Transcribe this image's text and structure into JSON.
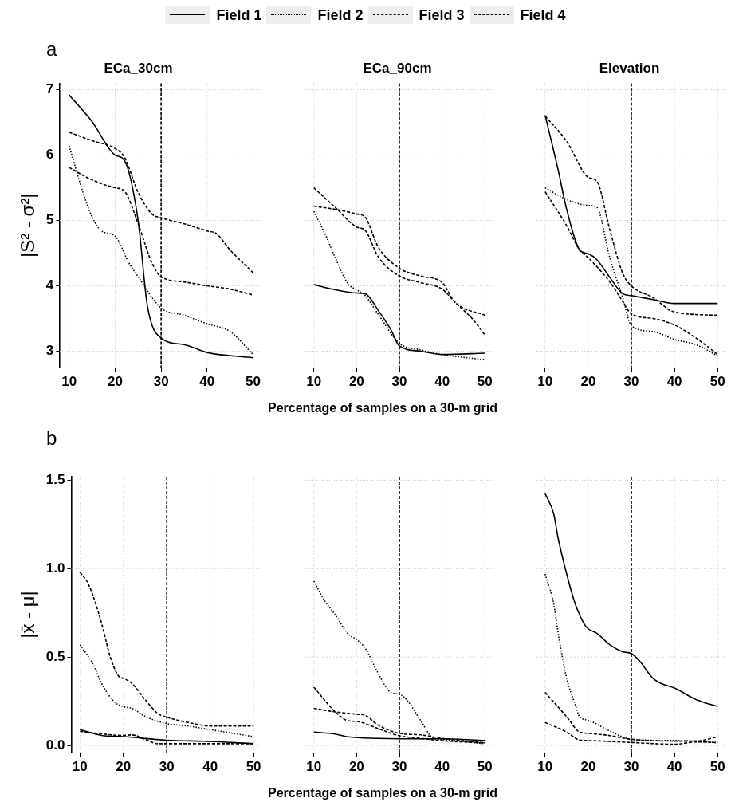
{
  "chart_data": [
    {
      "type": "line",
      "title": "ECa_30cm",
      "ylabel": "|S² - σ²|",
      "annotations": [
        "a"
      ],
      "legend": "top",
      "grid": true,
      "xlim": [
        8,
        52
      ],
      "xticks": [
        10,
        20,
        30,
        40,
        50
      ],
      "ylim": [
        2.75,
        7.1
      ],
      "yticks": [
        3,
        4,
        5,
        6,
        7
      ],
      "ref_lines": [
        {
          "axis": "x",
          "value": 30,
          "line_style": "dashed"
        }
      ],
      "series": [
        {
          "name": "Field 1",
          "color": "#000000",
          "line_style": "solid",
          "x": [
            10,
            15,
            20,
            22,
            25,
            27,
            30,
            35,
            40,
            50
          ],
          "values": [
            6.92,
            6.51,
            6.0,
            5.92,
            5.0,
            3.7,
            3.2,
            3.1,
            2.98,
            2.9
          ]
        },
        {
          "name": "Field 2",
          "color": "#000000",
          "line_style": "dotted",
          "x": [
            10,
            13,
            15,
            17,
            20,
            23,
            25,
            30,
            35,
            40,
            45,
            50
          ],
          "values": [
            6.14,
            5.43,
            5.05,
            4.84,
            4.76,
            4.35,
            4.14,
            3.66,
            3.55,
            3.42,
            3.3,
            2.95
          ]
        },
        {
          "name": "Field 3",
          "color": "#000000",
          "line_style": "dashed",
          "x": [
            10,
            15,
            20,
            22,
            25,
            28,
            30,
            35,
            40,
            42,
            45,
            50
          ],
          "values": [
            6.35,
            6.22,
            6.1,
            5.97,
            5.43,
            5.1,
            5.04,
            4.95,
            4.84,
            4.8,
            4.55,
            4.2
          ]
        },
        {
          "name": "Field 4",
          "color": "#000000",
          "line_style": "dashed",
          "x": [
            10,
            15,
            20,
            22,
            25,
            28,
            30,
            35,
            40,
            45,
            50
          ],
          "values": [
            5.81,
            5.62,
            5.5,
            5.45,
            4.95,
            4.35,
            4.14,
            4.06,
            4.0,
            3.95,
            3.86
          ]
        }
      ]
    },
    {
      "type": "line",
      "title": "ECa_90cm",
      "xlabel": "Percentage of samples on a 30-m grid",
      "tick_labels": "x",
      "grid": true,
      "xlim": [
        8,
        52
      ],
      "xticks": [
        10,
        20,
        30,
        40,
        50
      ],
      "ylim": [
        2.75,
        7.1
      ],
      "yticks": [
        3,
        4,
        5,
        6,
        7
      ],
      "ref_lines": [
        {
          "axis": "x",
          "value": 30,
          "line_style": "dashed"
        }
      ],
      "series": [
        {
          "color": "#000000",
          "line_style": "solid",
          "x": [
            10,
            15,
            20,
            22,
            25,
            28,
            30,
            35,
            40,
            50
          ],
          "values": [
            4.02,
            3.94,
            3.89,
            3.88,
            3.63,
            3.33,
            3.08,
            3.0,
            2.95,
            2.97
          ]
        },
        {
          "color": "#000000",
          "line_style": "dotted",
          "x": [
            10,
            13,
            15,
            18,
            20,
            22,
            25,
            30,
            35,
            40,
            50
          ],
          "values": [
            5.14,
            4.74,
            4.43,
            4.03,
            3.94,
            3.85,
            3.57,
            3.12,
            3.02,
            2.95,
            2.87
          ]
        },
        {
          "color": "#000000",
          "line_style": "dashed",
          "x": [
            10,
            15,
            20,
            22,
            25,
            30,
            35,
            40,
            43,
            47,
            50
          ],
          "values": [
            5.5,
            5.2,
            4.9,
            4.85,
            4.45,
            4.15,
            4.05,
            3.95,
            3.75,
            3.5,
            3.25
          ]
        },
        {
          "color": "#000000",
          "line_style": "dashed",
          "x": [
            10,
            15,
            20,
            22,
            25,
            30,
            35,
            40,
            43,
            50
          ],
          "values": [
            5.22,
            5.17,
            5.1,
            5.05,
            4.6,
            4.27,
            4.15,
            4.05,
            3.75,
            3.55
          ]
        }
      ]
    },
    {
      "type": "line",
      "title": "Elevation",
      "tick_labels": "x",
      "grid": true,
      "xlim": [
        8,
        52
      ],
      "xticks": [
        10,
        20,
        30,
        40,
        50
      ],
      "ylim": [
        2.75,
        7.1
      ],
      "yticks": [
        3,
        4,
        5,
        6,
        7
      ],
      "ref_lines": [
        {
          "axis": "x",
          "value": 30,
          "line_style": "dashed"
        }
      ],
      "series": [
        {
          "color": "#000000",
          "line_style": "solid",
          "x": [
            10,
            13,
            15,
            18,
            20,
            22,
            25,
            28,
            30,
            35,
            40,
            50
          ],
          "values": [
            6.61,
            5.78,
            5.17,
            4.55,
            4.49,
            4.4,
            4.13,
            3.88,
            3.85,
            3.79,
            3.73,
            3.73
          ]
        },
        {
          "color": "#000000",
          "line_style": "dotted",
          "x": [
            10,
            15,
            20,
            22,
            25,
            28,
            30,
            35,
            40,
            45,
            50
          ],
          "values": [
            5.5,
            5.32,
            5.23,
            5.2,
            4.43,
            3.82,
            3.39,
            3.3,
            3.18,
            3.1,
            2.93
          ]
        },
        {
          "color": "#000000",
          "line_style": "dashed",
          "x": [
            10,
            15,
            20,
            22,
            25,
            28,
            30,
            35,
            40,
            50
          ],
          "values": [
            6.6,
            6.21,
            5.66,
            5.6,
            4.86,
            4.19,
            4.0,
            3.82,
            3.6,
            3.55
          ]
        },
        {
          "color": "#000000",
          "line_style": "dashed",
          "x": [
            10,
            15,
            18,
            20,
            25,
            28,
            30,
            35,
            40,
            45,
            50
          ],
          "values": [
            5.44,
            4.92,
            4.55,
            4.43,
            4.06,
            3.76,
            3.57,
            3.5,
            3.4,
            3.2,
            2.95
          ]
        }
      ]
    },
    {
      "type": "line",
      "ylabel": "|x̄ - μ|",
      "annotations": [
        "b"
      ],
      "grid": true,
      "xlim": [
        8,
        52
      ],
      "xticks": [
        10,
        20,
        30,
        40,
        50
      ],
      "ylim": [
        -0.04,
        1.52
      ],
      "yticks": [
        {
          "value": 0,
          "label": "0.0"
        },
        0.5,
        {
          "value": 1,
          "label": "1.0"
        },
        1.5
      ],
      "ref_lines": [
        {
          "axis": "x",
          "value": 30,
          "line_style": "dashed"
        }
      ],
      "series": [
        {
          "color": "#000000",
          "line_style": "solid",
          "x": [
            10,
            15,
            20,
            30,
            40,
            50
          ],
          "values": [
            0.09,
            0.057,
            0.05,
            0.03,
            0.023,
            0.01
          ]
        },
        {
          "color": "#000000",
          "line_style": "dotted",
          "x": [
            10,
            13,
            15,
            18,
            20,
            22,
            25,
            30,
            35,
            40,
            45,
            50
          ],
          "values": [
            0.57,
            0.46,
            0.35,
            0.245,
            0.22,
            0.21,
            0.165,
            0.124,
            0.11,
            0.09,
            0.07,
            0.05
          ]
        },
        {
          "color": "#000000",
          "line_style": "dashed",
          "x": [
            10,
            12,
            15,
            17,
            19,
            20,
            22,
            25,
            28,
            30,
            35,
            40,
            50
          ],
          "values": [
            0.98,
            0.91,
            0.69,
            0.5,
            0.39,
            0.38,
            0.35,
            0.26,
            0.18,
            0.16,
            0.13,
            0.11,
            0.11
          ]
        },
        {
          "color": "#000000",
          "line_style": "dashed",
          "x": [
            10,
            20,
            22,
            25,
            28,
            30,
            40,
            50
          ],
          "values": [
            0.08,
            0.057,
            0.06,
            0.035,
            0.01,
            0.01,
            0.01,
            0.01
          ]
        }
      ]
    },
    {
      "type": "line",
      "xlabel": "Percentage of samples on a 30-m grid",
      "tick_labels": "x",
      "grid": true,
      "xlim": [
        8,
        52
      ],
      "xticks": [
        10,
        20,
        30,
        40,
        50
      ],
      "ylim": [
        -0.04,
        1.52
      ],
      "yticks": [
        0,
        0.5,
        1,
        1.5
      ],
      "ref_lines": [
        {
          "axis": "x",
          "value": 30,
          "line_style": "dashed"
        }
      ],
      "series": [
        {
          "color": "#000000",
          "line_style": "solid",
          "x": [
            10,
            15,
            18,
            25,
            30,
            40,
            50
          ],
          "values": [
            0.076,
            0.065,
            0.049,
            0.04,
            0.038,
            0.038,
            0.028
          ]
        },
        {
          "color": "#000000",
          "line_style": "dotted",
          "x": [
            10,
            12.5,
            15,
            18,
            20,
            22,
            25,
            28,
            30,
            32,
            35,
            38,
            40,
            50
          ],
          "values": [
            0.93,
            0.82,
            0.74,
            0.63,
            0.6,
            0.55,
            0.41,
            0.3,
            0.29,
            0.25,
            0.14,
            0.04,
            0.033,
            0.01
          ]
        },
        {
          "color": "#000000",
          "line_style": "dashed",
          "x": [
            10,
            15,
            18,
            20,
            25,
            30,
            35,
            40,
            50
          ],
          "values": [
            0.33,
            0.19,
            0.14,
            0.136,
            0.096,
            0.055,
            0.04,
            0.027,
            0.015
          ]
        },
        {
          "color": "#000000",
          "line_style": "dashed",
          "x": [
            10,
            15,
            20,
            22,
            25,
            30,
            35,
            40,
            45,
            50
          ],
          "values": [
            0.21,
            0.19,
            0.177,
            0.17,
            0.116,
            0.069,
            0.06,
            0.04,
            0.027,
            0.015
          ]
        }
      ]
    },
    {
      "type": "line",
      "tick_labels": "x",
      "grid": true,
      "xlim": [
        8,
        52
      ],
      "xticks": [
        10,
        20,
        30,
        40,
        50
      ],
      "ylim": [
        -0.04,
        1.52
      ],
      "yticks": [
        0,
        0.5,
        1,
        1.5
      ],
      "ref_lines": [
        {
          "axis": "x",
          "value": 30,
          "line_style": "dashed"
        }
      ],
      "series": [
        {
          "color": "#000000",
          "line_style": "solid",
          "x": [
            10,
            12,
            13,
            15,
            17,
            19,
            20,
            22,
            25,
            28,
            30,
            32,
            35,
            37,
            40,
            45,
            50
          ],
          "values": [
            1.425,
            1.31,
            1.175,
            0.97,
            0.8,
            0.69,
            0.66,
            0.635,
            0.57,
            0.53,
            0.52,
            0.475,
            0.38,
            0.35,
            0.325,
            0.26,
            0.22
          ]
        },
        {
          "color": "#000000",
          "line_style": "dotted",
          "x": [
            10,
            12,
            13,
            14,
            15,
            17,
            18,
            20,
            25,
            30,
            40,
            45,
            50
          ],
          "values": [
            0.97,
            0.8,
            0.64,
            0.5,
            0.38,
            0.23,
            0.163,
            0.143,
            0.082,
            0.035,
            0.028,
            0.025,
            0.015
          ]
        },
        {
          "color": "#000000",
          "line_style": "dashed",
          "x": [
            10,
            15,
            18,
            20,
            30,
            40,
            45,
            50
          ],
          "values": [
            0.13,
            0.076,
            0.031,
            0.028,
            0.017,
            0.007,
            0.02,
            0.017
          ]
        },
        {
          "color": "#000000",
          "line_style": "dashed",
          "x": [
            10,
            15,
            18,
            20,
            25,
            30,
            40,
            45,
            50
          ],
          "values": [
            0.3,
            0.163,
            0.076,
            0.069,
            0.056,
            0.035,
            0.025,
            0.025,
            0.049
          ]
        }
      ]
    }
  ]
}
